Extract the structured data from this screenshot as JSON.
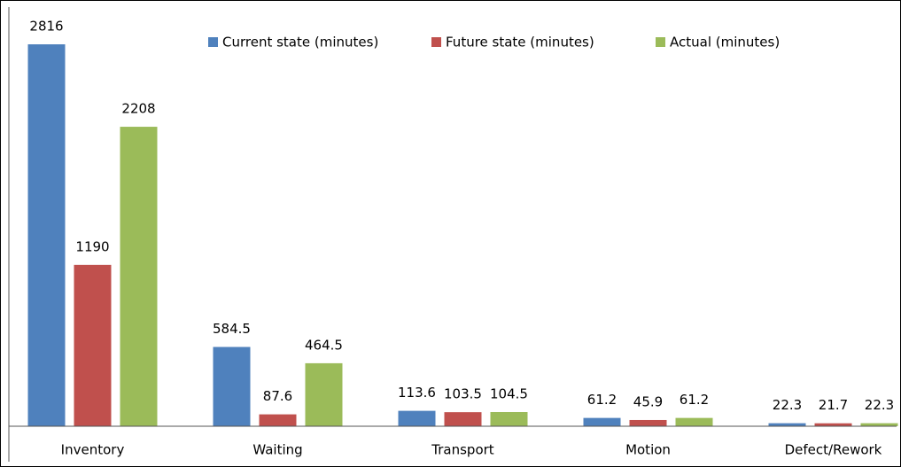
{
  "chart_data": {
    "type": "bar",
    "categories": [
      "Inventory",
      "Waiting",
      "Transport",
      "Motion",
      "Defect/Rework"
    ],
    "series": [
      {
        "name": "Current state (minutes)",
        "color": "#4f81bd",
        "values": [
          2816,
          584.5,
          113.6,
          61.2,
          22.3
        ]
      },
      {
        "name": "Future state (minutes)",
        "color": "#c0504d",
        "values": [
          1190,
          87.6,
          103.5,
          45.9,
          21.7
        ]
      },
      {
        "name": "Actual (minutes)",
        "color": "#9bbb59",
        "values": [
          2208,
          464.5,
          104.5,
          61.2,
          22.3
        ]
      }
    ],
    "legend": "top"
  }
}
